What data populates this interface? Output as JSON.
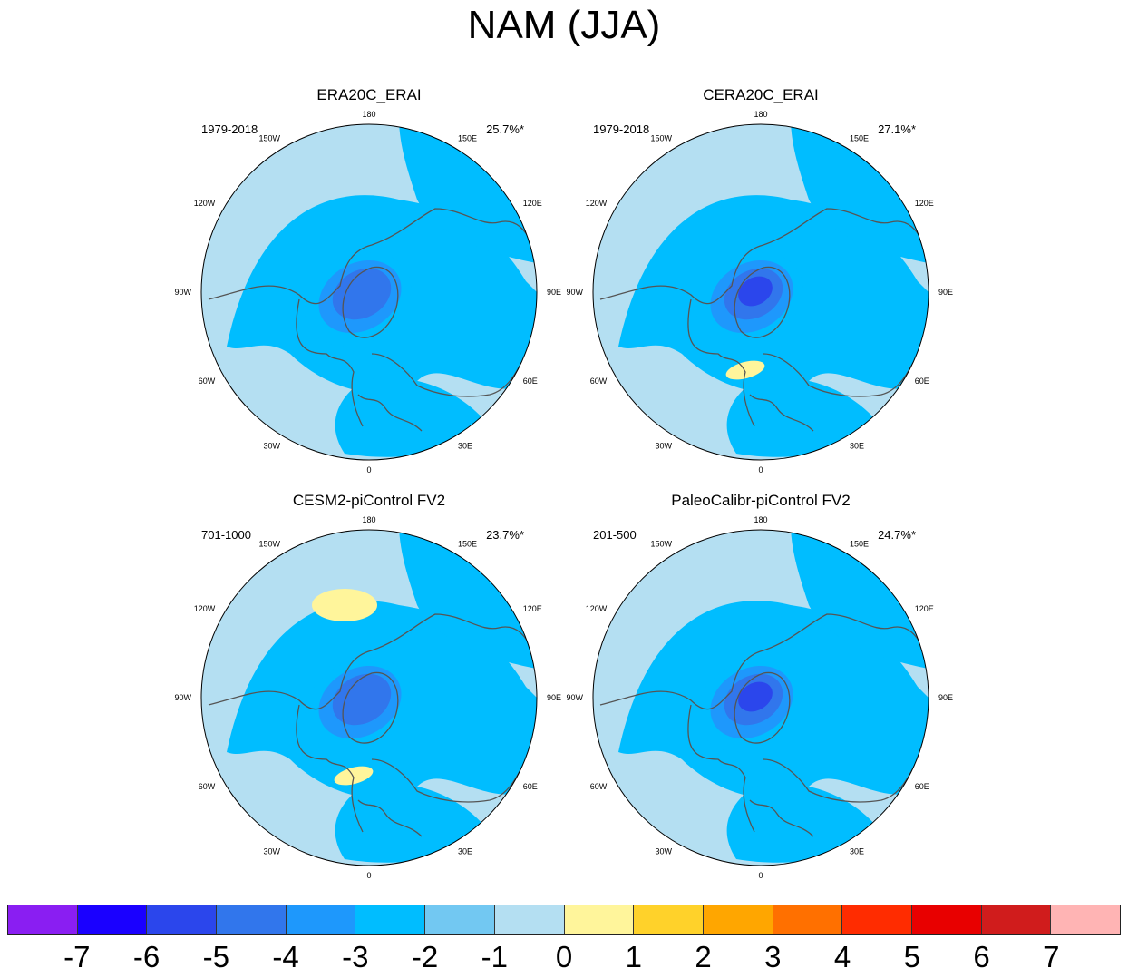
{
  "title": "NAM (JJA)",
  "chart_data": {
    "type": "heatmap",
    "projection": "polar stereographic (Northern Hemisphere)",
    "title": "NAM (JJA)",
    "longitude_labels": [
      "180",
      "150E",
      "120E",
      "90E",
      "60E",
      "30E",
      "0",
      "30W",
      "60W",
      "90W",
      "120W",
      "150W"
    ],
    "panels": [
      {
        "name": "ERA20C_ERAI",
        "period": "1979-2018",
        "variance_explained": "25.7%*",
        "pattern": {
          "center_min": -3,
          "arctic_ring": -1,
          "north_atlantic_positive": 1,
          "north_pacific_positive": 0
        }
      },
      {
        "name": "CERA20C_ERAI",
        "period": "1979-2018",
        "variance_explained": "27.1%*",
        "pattern": {
          "center_min": -4,
          "arctic_ring": -1,
          "north_atlantic_positive": 2,
          "north_pacific_positive": 0
        }
      },
      {
        "name": "CESM2-piControl FV2",
        "period": "701-1000",
        "variance_explained": "23.7%*",
        "pattern": {
          "center_min": -3,
          "arctic_ring": -1,
          "north_atlantic_positive": 2,
          "north_pacific_positive": 2
        }
      },
      {
        "name": "PaleoCalibr-piControl FV2",
        "period": "201-500",
        "variance_explained": "24.7%*",
        "pattern": {
          "center_min": -4,
          "arctic_ring": -1,
          "north_atlantic_positive": 1,
          "north_pacific_positive": 0
        }
      }
    ],
    "colorbar": {
      "levels": [
        "-7",
        "-6",
        "-5",
        "-4",
        "-3",
        "-2",
        "-1",
        "0",
        "1",
        "2",
        "3",
        "4",
        "5",
        "6",
        "7"
      ],
      "colors": [
        "#8a1ef2",
        "#1a00ff",
        "#2b46ec",
        "#3176ec",
        "#1e98fc",
        "#00bdff",
        "#72c8f2",
        "#b4dff2",
        "#fff59b",
        "#ffd22a",
        "#ffa600",
        "#ff7000",
        "#ff2c00",
        "#e80000",
        "#d01c1c",
        "#ffb4b4"
      ]
    }
  }
}
